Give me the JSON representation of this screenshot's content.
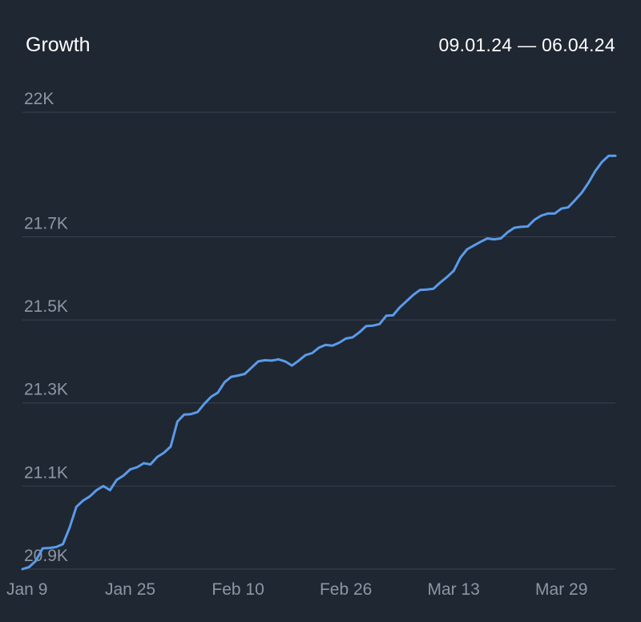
{
  "header": {
    "title": "Growth",
    "date_range": "09.01.24 — 06.04.24"
  },
  "colors": {
    "background": "#1f2733",
    "line": "#5b9be8",
    "grid": "#39424f",
    "tick_text": "#8e96a3"
  },
  "chart_data": {
    "type": "line",
    "title": "Growth",
    "subtitle": "09.01.24 — 06.04.24",
    "xlabel": "",
    "ylabel": "",
    "grid": true,
    "legend": "none",
    "x_start": "2024-01-09",
    "x_end": "2024-04-06",
    "xlim": [
      "2024-01-09",
      "2024-04-06"
    ],
    "ylim": [
      20900,
      22000
    ],
    "y_ticks": [
      {
        "value": 20900,
        "label": "20.9K"
      },
      {
        "value": 21100,
        "label": "21.1K"
      },
      {
        "value": 21300,
        "label": "21.3K"
      },
      {
        "value": 21500,
        "label": "21.5K"
      },
      {
        "value": 21700,
        "label": "21.7K"
      },
      {
        "value": 22000,
        "label": "22K"
      }
    ],
    "x_ticks": [
      {
        "date": "2024-01-09",
        "label": "Jan 9"
      },
      {
        "date": "2024-01-25",
        "label": "Jan 25"
      },
      {
        "date": "2024-02-10",
        "label": "Feb 10"
      },
      {
        "date": "2024-02-26",
        "label": "Feb 26"
      },
      {
        "date": "2024-03-13",
        "label": "Mar 13"
      },
      {
        "date": "2024-03-29",
        "label": "Mar 29"
      }
    ],
    "series": [
      {
        "x": [
          "2024-01-09",
          "2024-01-10",
          "2024-01-11",
          "2024-01-12",
          "2024-01-13",
          "2024-01-14",
          "2024-01-15",
          "2024-01-16",
          "2024-01-17",
          "2024-01-18",
          "2024-01-19",
          "2024-01-20",
          "2024-01-21",
          "2024-01-22",
          "2024-01-23",
          "2024-01-24",
          "2024-01-25",
          "2024-01-26",
          "2024-01-27",
          "2024-01-28",
          "2024-01-29",
          "2024-01-30",
          "2024-01-31",
          "2024-02-01",
          "2024-02-02",
          "2024-02-03",
          "2024-02-04",
          "2024-02-05",
          "2024-02-06",
          "2024-02-07",
          "2024-02-08",
          "2024-02-09",
          "2024-02-10",
          "2024-02-11",
          "2024-02-12",
          "2024-02-13",
          "2024-02-14",
          "2024-02-15",
          "2024-02-16",
          "2024-02-17",
          "2024-02-18",
          "2024-02-19",
          "2024-02-20",
          "2024-02-21",
          "2024-02-22",
          "2024-02-23",
          "2024-02-24",
          "2024-02-25",
          "2024-02-26",
          "2024-02-27",
          "2024-02-28",
          "2024-02-29",
          "2024-03-01",
          "2024-03-02",
          "2024-03-03",
          "2024-03-04",
          "2024-03-05",
          "2024-03-06",
          "2024-03-07",
          "2024-03-08",
          "2024-03-09",
          "2024-03-10",
          "2024-03-11",
          "2024-03-12",
          "2024-03-13",
          "2024-03-14",
          "2024-03-15",
          "2024-03-16",
          "2024-03-17",
          "2024-03-18",
          "2024-03-19",
          "2024-03-20",
          "2024-03-21",
          "2024-03-22",
          "2024-03-23",
          "2024-03-24",
          "2024-03-25",
          "2024-03-26",
          "2024-03-27",
          "2024-03-28",
          "2024-03-29",
          "2024-03-30",
          "2024-03-31",
          "2024-04-01",
          "2024-04-02",
          "2024-04-03",
          "2024-04-04",
          "2024-04-05",
          "2024-04-06"
        ],
        "y": [
          20900,
          20905,
          20920,
          20950,
          20951,
          20953,
          20960,
          21000,
          21050,
          21065,
          21075,
          21090,
          21100,
          21090,
          21115,
          21125,
          21140,
          21145,
          21155,
          21152,
          21170,
          21180,
          21195,
          21255,
          21272,
          21273,
          21278,
          21298,
          21315,
          21325,
          21350,
          21363,
          21366,
          21370,
          21385,
          21400,
          21403,
          21402,
          21405,
          21400,
          21390,
          21402,
          21415,
          21420,
          21433,
          21440,
          21438,
          21445,
          21455,
          21458,
          21470,
          21485,
          21486,
          21490,
          21510,
          21511,
          21530,
          21545,
          21560,
          21572,
          21573,
          21575,
          21590,
          21603,
          21618,
          21650,
          21670,
          21679,
          21688,
          21696,
          21694,
          21696,
          21711,
          21722,
          21724,
          21725,
          21741,
          21751,
          21756,
          21756,
          21768,
          21771,
          21788,
          21806,
          21830,
          21858,
          21880,
          21895,
          21895
        ]
      }
    ]
  }
}
